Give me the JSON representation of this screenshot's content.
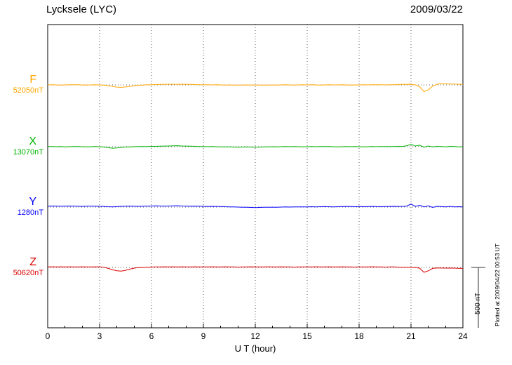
{
  "chart_data": {
    "type": "line",
    "title": "Lycksele (LYC)",
    "date": "2009/03/22",
    "xlabel": "U T (hour)",
    "x_tick_labels": [
      "0",
      "3",
      "6",
      "9",
      "12",
      "15",
      "18",
      "21",
      "24"
    ],
    "x_range_hours": [
      0,
      24
    ],
    "x_step_hours": 0.25,
    "gridline_hours": [
      3,
      6,
      9,
      12,
      15,
      18,
      21
    ],
    "scale_nT": 500,
    "scale_bar": {
      "label": "500 nT",
      "nT": 500
    },
    "plotted_note": "Plotted at 2009/04/22 00:53 UT",
    "series": [
      {
        "name": "F",
        "label_value": "52050nT",
        "baseline_nT": 52050,
        "color": "#FFA500",
        "offsets_nT": [
          0,
          1,
          0,
          -1,
          0,
          1,
          2,
          1,
          0,
          -1,
          0,
          1,
          0,
          -2,
          -6,
          -12,
          -18,
          -20,
          -17,
          -12,
          -7,
          -3,
          -1,
          1,
          2,
          3,
          4,
          5,
          6,
          6,
          5,
          6,
          5,
          4,
          3,
          2,
          2,
          1,
          0,
          1,
          0,
          -1,
          0,
          -1,
          -2,
          -1,
          0,
          -1,
          0,
          -1,
          -2,
          -1,
          0,
          -1,
          0,
          1,
          0,
          -1,
          0,
          1,
          0,
          1,
          0,
          -1,
          0,
          1,
          0,
          0,
          1,
          0,
          -1,
          0,
          0,
          1,
          0,
          1,
          2,
          1,
          0,
          1,
          2,
          3,
          4,
          5,
          4,
          0,
          -15,
          -55,
          -40,
          -10,
          5,
          10,
          9,
          8,
          7,
          6,
          5
        ]
      },
      {
        "name": "X",
        "label_value": "13070nT",
        "baseline_nT": 13070,
        "color": "#00B400",
        "offsets_nT": [
          2,
          1,
          0,
          1,
          -1,
          0,
          1,
          2,
          0,
          -1,
          0,
          1,
          0,
          -3,
          -8,
          -12,
          -10,
          -6,
          -3,
          -1,
          0,
          1,
          2,
          2,
          3,
          3,
          4,
          5,
          6,
          7,
          8,
          6,
          5,
          4,
          3,
          2,
          1,
          0,
          1,
          0,
          -1,
          -2,
          -1,
          -3,
          -4,
          -3,
          -2,
          -3,
          -4,
          -3,
          -2,
          -1,
          0,
          -1,
          0,
          1,
          0,
          1,
          0,
          -1,
          0,
          1,
          0,
          1,
          2,
          1,
          0,
          -1,
          0,
          1,
          0,
          1,
          0,
          -1,
          0,
          1,
          0,
          1,
          2,
          1,
          2,
          3,
          2,
          8,
          20,
          6,
          12,
          -4,
          6,
          -2,
          3,
          2,
          -2,
          3,
          1,
          -1,
          0
        ]
      },
      {
        "name": "Y",
        "label_value": "1280nT",
        "baseline_nT": 1280,
        "color": "#0000FF",
        "offsets_nT": [
          8,
          9,
          8,
          7,
          8,
          9,
          8,
          7,
          6,
          7,
          8,
          7,
          6,
          5,
          3,
          2,
          4,
          6,
          7,
          8,
          7,
          6,
          7,
          8,
          9,
          10,
          9,
          8,
          9,
          10,
          11,
          9,
          8,
          7,
          8,
          7,
          6,
          5,
          6,
          5,
          4,
          3,
          2,
          1,
          0,
          -1,
          -2,
          -3,
          -4,
          -3,
          -2,
          -1,
          -2,
          -1,
          0,
          1,
          0,
          1,
          2,
          1,
          2,
          3,
          2,
          3,
          4,
          3,
          2,
          3,
          4,
          5,
          4,
          3,
          4,
          3,
          4,
          5,
          4,
          3,
          4,
          5,
          6,
          5,
          6,
          8,
          25,
          5,
          15,
          2,
          10,
          -3,
          6,
          4,
          1,
          5,
          2,
          3,
          2
        ]
      },
      {
        "name": "Z",
        "label_value": "50620nT",
        "baseline_nT": 50620,
        "color": "#DD0000",
        "offsets_nT": [
          4,
          5,
          4,
          5,
          4,
          5,
          4,
          4,
          5,
          4,
          4,
          5,
          4,
          2,
          -8,
          -20,
          -28,
          -30,
          -24,
          -14,
          -6,
          -2,
          0,
          2,
          3,
          4,
          4,
          5,
          4,
          5,
          4,
          5,
          4,
          4,
          5,
          4,
          4,
          4,
          5,
          4,
          4,
          5,
          4,
          4,
          3,
          4,
          4,
          5,
          4,
          4,
          4,
          5,
          4,
          4,
          5,
          4,
          4,
          3,
          4,
          4,
          4,
          4,
          5,
          4,
          4,
          5,
          4,
          4,
          5,
          4,
          4,
          3,
          4,
          4,
          4,
          5,
          4,
          4,
          3,
          4,
          4,
          3,
          2,
          2,
          0,
          -2,
          -6,
          -40,
          -28,
          -8,
          -4,
          -5,
          -6,
          -5,
          -6,
          -7,
          -8
        ]
      }
    ]
  }
}
